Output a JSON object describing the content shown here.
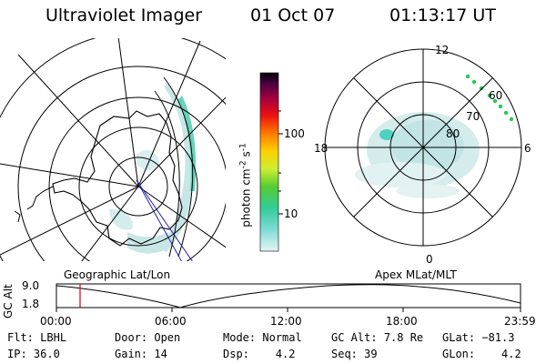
{
  "header": {
    "instrument": "Ultraviolet Imager",
    "date": "01 Oct 07",
    "time": "01:13:17 UT"
  },
  "colorbar": {
    "label": "photon cm",
    "exp1": "-2",
    "unit_mid": "s",
    "exp2": "-1",
    "ticks": [
      "100",
      "10"
    ]
  },
  "polar": {
    "labels": {
      "top": "12",
      "bottom": "0",
      "left": "18",
      "right": "6"
    },
    "lat_labels": [
      "60",
      "70",
      "80"
    ]
  },
  "panels": {
    "left_caption": "Geographic Lat/Lon",
    "right_caption": "Apex MLat/MLT"
  },
  "timeline": {
    "ylabel": "GC Alt",
    "ytick_top": "9.0",
    "ytick_bottom": "1.8",
    "xticks": [
      "00:00",
      "06:00",
      "12:00",
      "18:00",
      "23:59"
    ],
    "marker_time": "01:13"
  },
  "info": {
    "flt_label": "Flt:",
    "flt_value": "LBHL",
    "ip_label": "IP:",
    "ip_value": "36.0",
    "door_label": "Door:",
    "door_value": "Open",
    "gain_label": "Gain:",
    "gain_value": "14",
    "mode_label": "Mode:",
    "mode_value": "Normal",
    "dsp_label": "Dsp:",
    "dsp_value": "4.2",
    "gcalt_label": "GC Alt:",
    "gcalt_value": "7.8 Re",
    "seq_label": "Seq:",
    "seq_value": "39",
    "glat_label": "GLat:",
    "glat_value": "−81.3",
    "glon_label": "GLon:",
    "glon_value": "4.2"
  },
  "colors": {
    "aurora_low": "#c9e6e6",
    "aurora_mid": "#7fd6cc",
    "aurora_high": "#33cc88",
    "marker": "#dd0000",
    "track": "#2222aa"
  }
}
